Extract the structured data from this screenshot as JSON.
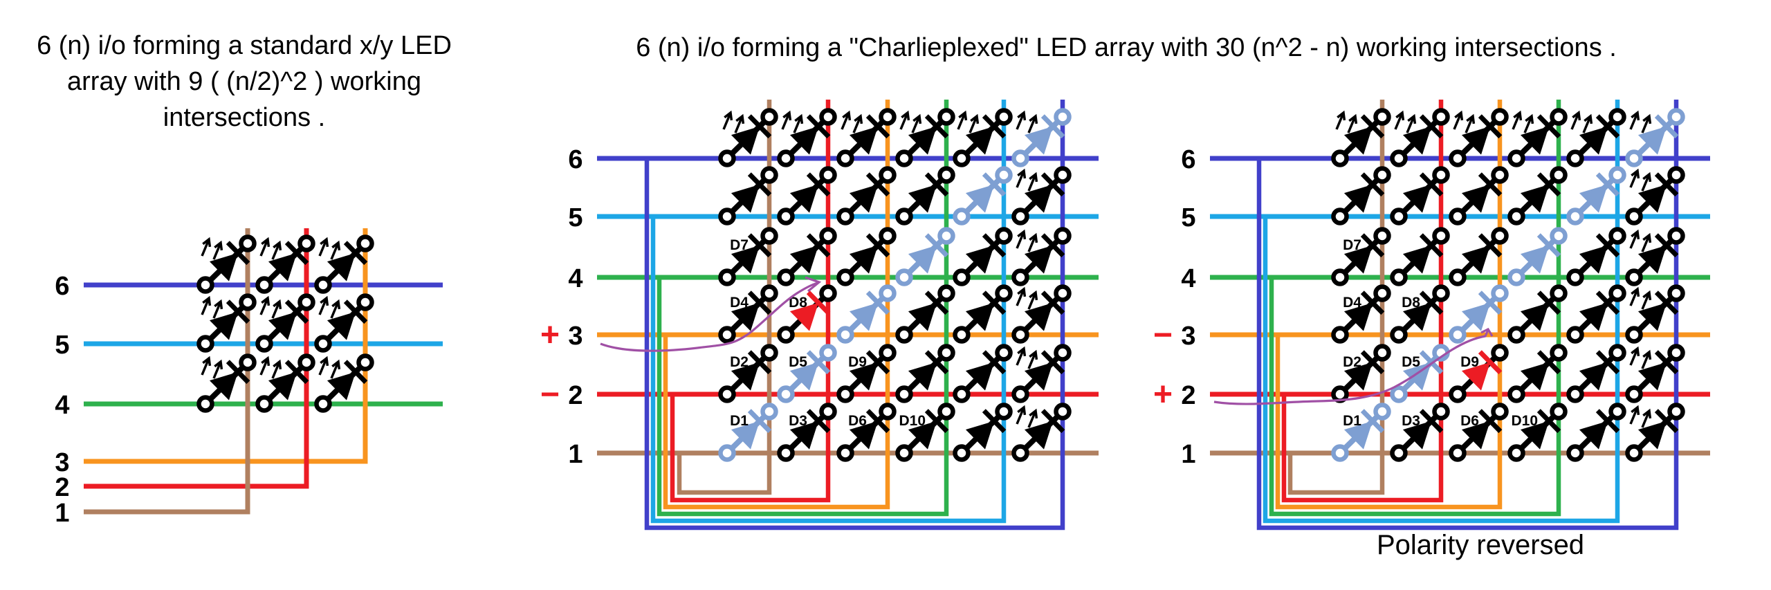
{
  "titles": {
    "left_lines": [
      "6 (n)  i/o forming a standard x/y LED",
      "array with 9 ( (n/2)^2 ) working",
      "intersections ."
    ],
    "center": "6 (n) i/o forming a \"Charlieplexed\"  LED  array with 30 (n^2 - n) working intersections .",
    "right_caption": "Polarity reversed"
  },
  "colors": {
    "wire_1_brown": "#b08060",
    "wire_2_red": "#ec1c24",
    "wire_3_orange": "#f8941f",
    "wire_4_green": "#2eb14d",
    "wire_5_cyan": "#1da6e6",
    "wire_6_blue": "#4140ca",
    "led_body": "#000000",
    "led_unusable": "#7e9fd2",
    "led_lit": "#ec1c24",
    "annotation": "#a050a5",
    "sign": "#ed1c24",
    "text": "#000000"
  },
  "left_diagram": {
    "row_labels": [
      "6",
      "5",
      "4"
    ],
    "column_labels": [
      "3",
      "2",
      "1"
    ],
    "led_count": 9
  },
  "center_diagram": {
    "io_labels": [
      "1",
      "2",
      "3",
      "4",
      "5",
      "6"
    ],
    "plus_on": "3",
    "minus_on": "2",
    "lit_led": "D8"
  },
  "right_diagram": {
    "io_labels": [
      "1",
      "2",
      "3",
      "4",
      "5",
      "6"
    ],
    "plus_on": "2",
    "minus_on": "3",
    "lit_led": "D9"
  },
  "led_labels": [
    {
      "name": "D1",
      "row": 1,
      "col": 1
    },
    {
      "name": "D2",
      "row": 2,
      "col": 1
    },
    {
      "name": "D3",
      "row": 1,
      "col": 2
    },
    {
      "name": "D4",
      "row": 3,
      "col": 1
    },
    {
      "name": "D5",
      "row": 2,
      "col": 2
    },
    {
      "name": "D6",
      "row": 1,
      "col": 3
    },
    {
      "name": "D7",
      "row": 4,
      "col": 1
    },
    {
      "name": "D8",
      "row": 3,
      "col": 2
    },
    {
      "name": "D9",
      "row": 2,
      "col": 3
    },
    {
      "name": "D10",
      "row": 1,
      "col": 4
    }
  ]
}
